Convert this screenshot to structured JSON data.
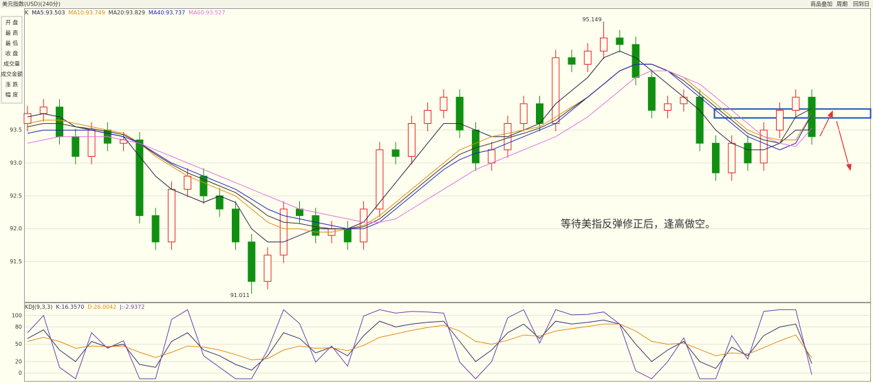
{
  "header": {
    "title": "美元指数(USD)(240分)",
    "links": [
      "商品叠加",
      "周期",
      "回到日"
    ]
  },
  "side_panel": [
    "开 盘",
    "最 高",
    "最 低",
    "收 盘",
    "成交量",
    "成交金额",
    "涨 跌",
    "幅 度"
  ],
  "chart_data": [
    {
      "type": "candlestick",
      "label": "K",
      "annotation": "等待美指反弹修正后，逢高做空。",
      "ylim": [
        90.9,
        95.33
      ],
      "yticks": [
        91.5,
        {
          "value": 92,
          "label": "92.0"
        },
        92.5,
        {
          "value": 93,
          "label": "93.0"
        },
        93.5
      ],
      "grid": true,
      "up_color": "#e82020",
      "down_color": "#109010",
      "open": [
        93.6,
        93.75,
        93.85,
        93.4,
        93.1,
        93.5,
        93.3,
        93.35,
        92.2,
        91.8,
        92.6,
        92.8,
        92.5,
        92.3,
        91.8,
        91.2,
        91.6,
        92.3,
        92.2,
        91.9,
        92.0,
        91.8,
        92.3,
        93.2,
        93.1,
        93.6,
        93.8,
        94.0,
        93.5,
        93.0,
        93.2,
        93.6,
        93.9,
        93.6,
        94.6,
        94.5,
        94.7,
        94.9,
        94.8,
        94.3,
        93.8,
        93.9,
        94.0,
        93.3,
        92.85,
        93.3,
        93.0,
        93.5,
        93.8,
        94.0
      ],
      "high": [
        93.87,
        93.97,
        93.97,
        93.52,
        93.62,
        93.62,
        93.47,
        93.47,
        92.32,
        92.72,
        92.92,
        92.92,
        92.62,
        92.42,
        91.92,
        91.72,
        92.42,
        92.42,
        92.32,
        92.12,
        92.12,
        92.42,
        93.32,
        93.32,
        93.72,
        93.92,
        94.12,
        94.12,
        93.62,
        93.32,
        93.72,
        94.02,
        94.02,
        94.72,
        94.72,
        94.82,
        95.149,
        95.02,
        94.92,
        94.42,
        94.02,
        94.12,
        94.12,
        93.42,
        93.42,
        93.42,
        93.62,
        93.92,
        94.12,
        94.12
      ],
      "low": [
        93.48,
        93.63,
        93.28,
        92.98,
        92.98,
        93.18,
        93.18,
        92.08,
        91.68,
        91.68,
        92.48,
        92.38,
        92.18,
        91.68,
        91.011,
        91.08,
        91.48,
        92.08,
        91.78,
        91.78,
        91.68,
        91.68,
        92.18,
        92.98,
        92.98,
        93.48,
        93.68,
        93.38,
        92.88,
        92.88,
        93.08,
        93.48,
        93.48,
        93.48,
        94.38,
        94.38,
        94.58,
        94.68,
        94.18,
        93.68,
        93.68,
        93.78,
        93.18,
        92.73,
        92.73,
        92.88,
        92.88,
        93.38,
        93.68,
        93.28
      ],
      "close": [
        93.75,
        93.85,
        93.4,
        93.1,
        93.5,
        93.3,
        93.35,
        92.2,
        91.8,
        92.6,
        92.8,
        92.5,
        92.3,
        91.8,
        91.2,
        91.6,
        92.3,
        92.2,
        91.9,
        92.0,
        91.8,
        92.3,
        93.2,
        93.1,
        93.6,
        93.8,
        94.0,
        93.5,
        93.0,
        93.2,
        93.6,
        93.9,
        93.6,
        94.6,
        94.5,
        94.7,
        94.9,
        94.8,
        94.3,
        93.8,
        93.9,
        94.0,
        93.3,
        92.85,
        93.3,
        93.0,
        93.5,
        93.8,
        94.0,
        93.4
      ],
      "series": [
        {
          "name": "MA5:",
          "color": "#222244",
          "values": [
            93.7,
            93.75,
            93.7,
            93.55,
            93.5,
            93.45,
            93.4,
            93.1,
            92.8,
            92.6,
            92.5,
            92.4,
            92.5,
            92.4,
            92.0,
            91.8,
            91.8,
            91.9,
            92.0,
            92.0,
            92.0,
            92.1,
            92.4,
            92.7,
            93.0,
            93.3,
            93.6,
            93.6,
            93.5,
            93.4,
            93.4,
            93.5,
            93.6,
            93.9,
            94.1,
            94.3,
            94.6,
            94.7,
            94.6,
            94.4,
            94.2,
            94.0,
            93.8,
            93.5,
            93.3,
            93.2,
            93.2,
            93.3,
            93.5,
            93.503
          ]
        },
        {
          "name": "MA10:",
          "color": "#e08a10",
          "values": [
            93.6,
            93.65,
            93.65,
            93.6,
            93.55,
            93.5,
            93.45,
            93.3,
            93.1,
            92.95,
            92.8,
            92.7,
            92.6,
            92.5,
            92.3,
            92.1,
            92.0,
            92.0,
            91.95,
            91.95,
            92.0,
            92.05,
            92.2,
            92.4,
            92.6,
            92.8,
            93.0,
            93.2,
            93.3,
            93.4,
            93.45,
            93.5,
            93.55,
            93.7,
            93.85,
            94.0,
            94.2,
            94.4,
            94.5,
            94.5,
            94.4,
            94.3,
            94.1,
            93.9,
            93.7,
            93.5,
            93.4,
            93.35,
            93.35,
            93.749
          ]
        },
        {
          "name": "MA20:",
          "color": "#333333",
          "values": [
            93.55,
            93.6,
            93.6,
            93.55,
            93.52,
            93.48,
            93.43,
            93.3,
            93.13,
            92.98,
            92.85,
            92.75,
            92.65,
            92.55,
            92.38,
            92.2,
            92.1,
            92.08,
            92.03,
            92.0,
            92.0,
            92.03,
            92.15,
            92.35,
            92.55,
            92.75,
            92.95,
            93.13,
            93.23,
            93.3,
            93.38,
            93.45,
            93.53,
            93.65,
            93.83,
            94.0,
            94.2,
            94.4,
            94.5,
            94.5,
            94.4,
            94.25,
            94.05,
            93.85,
            93.65,
            93.45,
            93.35,
            93.3,
            93.7,
            93.829
          ]
        },
        {
          "name": "MA40:",
          "color": "#2020c0",
          "values": [
            93.45,
            93.5,
            93.5,
            93.5,
            93.5,
            93.45,
            93.4,
            93.3,
            93.15,
            93.0,
            92.9,
            92.8,
            92.7,
            92.6,
            92.45,
            92.3,
            92.2,
            92.15,
            92.1,
            92.05,
            92.0,
            92.0,
            92.1,
            92.3,
            92.5,
            92.7,
            92.9,
            93.05,
            93.15,
            93.2,
            93.3,
            93.4,
            93.5,
            93.6,
            93.8,
            94.0,
            94.2,
            94.4,
            94.5,
            94.5,
            94.4,
            94.2,
            94.0,
            93.8,
            93.6,
            93.4,
            93.3,
            93.2,
            93.3,
            93.737
          ]
        },
        {
          "name": "MA60:",
          "color": "#e070e0",
          "values": [
            93.3,
            93.35,
            93.4,
            93.4,
            93.4,
            93.4,
            93.35,
            93.3,
            93.2,
            93.1,
            93.0,
            92.9,
            92.8,
            92.7,
            92.6,
            92.5,
            92.4,
            92.3,
            92.25,
            92.2,
            92.15,
            92.1,
            92.1,
            92.15,
            92.3,
            92.45,
            92.6,
            92.75,
            92.9,
            93.0,
            93.1,
            93.2,
            93.3,
            93.4,
            93.55,
            93.7,
            93.9,
            94.1,
            94.3,
            94.4,
            94.4,
            94.3,
            94.2,
            94.0,
            93.8,
            93.6,
            93.4,
            93.3,
            93.25,
            93.527
          ]
        }
      ]
    },
    {
      "type": "line",
      "label": "KDJ(9,3,3)",
      "ylim": [
        -12.5,
        120
      ],
      "yticks": [
        0,
        20,
        50,
        80,
        100
      ],
      "grid": true,
      "series": [
        {
          "name": "K:",
          "color": "#333366",
          "value_label": "16.3570",
          "values": [
            60,
            75,
            40,
            20,
            55,
            45,
            50,
            15,
            10,
            55,
            70,
            40,
            30,
            15,
            5,
            30,
            70,
            60,
            35,
            45,
            30,
            65,
            90,
            80,
            85,
            88,
            90,
            55,
            20,
            40,
            70,
            85,
            60,
            90,
            85,
            88,
            92,
            85,
            50,
            20,
            40,
            55,
            20,
            8,
            45,
            30,
            65,
            80,
            85,
            16.357
          ]
        },
        {
          "name": "D:",
          "color": "#e08a10",
          "values": [
            55,
            62,
            55,
            43,
            47,
            46,
            47,
            36,
            27,
            36,
            47,
            45,
            40,
            32,
            23,
            25,
            40,
            47,
            43,
            44,
            39,
            48,
            62,
            68,
            74,
            79,
            83,
            73,
            55,
            50,
            57,
            66,
            64,
            73,
            77,
            81,
            85,
            85,
            73,
            55,
            50,
            52,
            41,
            30,
            35,
            33,
            44,
            56,
            66,
            26.0042
          ]
        },
        {
          "name": "J:",
          "color": "#6a3fb0",
          "values": [
            70,
            100,
            10,
            -10,
            70,
            43,
            56,
            -10,
            -10,
            93,
            110,
            30,
            10,
            -10,
            -10,
            40,
            110,
            86,
            19,
            47,
            12,
            99,
            110,
            104,
            107,
            106,
            104,
            19,
            -10,
            20,
            96,
            110,
            52,
            110,
            101,
            102,
            106,
            85,
            4,
            -10,
            20,
            61,
            -10,
            -10,
            65,
            24,
            107,
            110,
            110,
            -2.9372
          ]
        }
      ]
    }
  ]
}
